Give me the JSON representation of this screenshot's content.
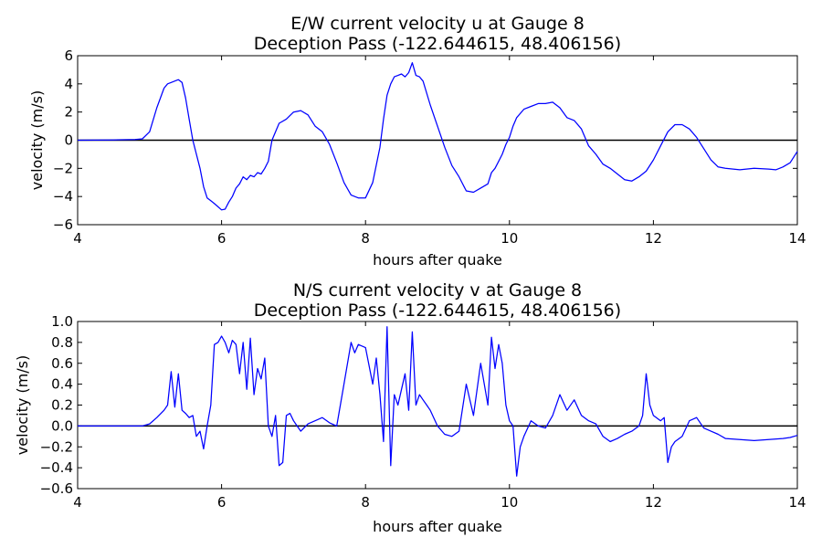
{
  "chart_data": [
    {
      "type": "line",
      "title_line1": "E/W current velocity u at Gauge 8",
      "title_line2": "Deception Pass  (-122.644615, 48.406156)",
      "xlabel": "hours after quake",
      "ylabel": "velocity (m/s)",
      "xlim": [
        4,
        14
      ],
      "ylim": [
        -6,
        6
      ],
      "xticks": [
        4,
        6,
        8,
        10,
        12,
        14
      ],
      "yticks": [
        -6,
        -4,
        -2,
        0,
        2,
        4,
        6
      ],
      "xtick_labels": [
        "4",
        "6",
        "8",
        "10",
        "12",
        "14"
      ],
      "ytick_labels": [
        "−6",
        "−4",
        "−2",
        "0",
        "2",
        "4",
        "6"
      ],
      "zero_line": true,
      "series_color": "#0000ff",
      "x": [
        4.0,
        4.5,
        4.8,
        4.9,
        5.0,
        5.1,
        5.2,
        5.25,
        5.3,
        5.4,
        5.45,
        5.5,
        5.55,
        5.6,
        5.7,
        5.75,
        5.8,
        5.85,
        5.9,
        6.0,
        6.05,
        6.1,
        6.15,
        6.2,
        6.25,
        6.3,
        6.35,
        6.4,
        6.45,
        6.5,
        6.55,
        6.6,
        6.65,
        6.7,
        6.8,
        6.9,
        7.0,
        7.1,
        7.2,
        7.3,
        7.4,
        7.5,
        7.6,
        7.7,
        7.8,
        7.9,
        8.0,
        8.1,
        8.2,
        8.25,
        8.3,
        8.35,
        8.4,
        8.45,
        8.5,
        8.55,
        8.6,
        8.65,
        8.7,
        8.75,
        8.8,
        8.9,
        9.0,
        9.1,
        9.2,
        9.3,
        9.4,
        9.5,
        9.6,
        9.7,
        9.75,
        9.8,
        9.85,
        9.9,
        9.95,
        10.0,
        10.05,
        10.1,
        10.2,
        10.3,
        10.4,
        10.5,
        10.6,
        10.7,
        10.8,
        10.9,
        11.0,
        11.1,
        11.2,
        11.3,
        11.4,
        11.5,
        11.6,
        11.7,
        11.8,
        11.9,
        12.0,
        12.1,
        12.2,
        12.3,
        12.4,
        12.5,
        12.6,
        12.7,
        12.8,
        12.9,
        13.0,
        13.2,
        13.4,
        13.6,
        13.7,
        13.8,
        13.9,
        14.0
      ],
      "y": [
        0.0,
        0.02,
        0.05,
        0.1,
        0.6,
        2.3,
        3.7,
        4.0,
        4.1,
        4.3,
        4.1,
        3.0,
        1.5,
        0.0,
        -2.0,
        -3.3,
        -4.1,
        -4.3,
        -4.5,
        -4.95,
        -4.9,
        -4.4,
        -4.0,
        -3.4,
        -3.1,
        -2.6,
        -2.8,
        -2.5,
        -2.6,
        -2.3,
        -2.4,
        -2.0,
        -1.5,
        0.0,
        1.2,
        1.5,
        2.0,
        2.1,
        1.8,
        1.0,
        0.6,
        -0.3,
        -1.6,
        -3.0,
        -3.9,
        -4.1,
        -4.1,
        -3.0,
        -0.5,
        1.5,
        3.2,
        4.0,
        4.5,
        4.6,
        4.7,
        4.5,
        4.8,
        5.5,
        4.6,
        4.5,
        4.2,
        2.5,
        1.0,
        -0.5,
        -1.8,
        -2.6,
        -3.6,
        -3.7,
        -3.4,
        -3.1,
        -2.3,
        -2.0,
        -1.5,
        -1.0,
        -0.3,
        0.2,
        1.0,
        1.6,
        2.2,
        2.4,
        2.6,
        2.6,
        2.7,
        2.3,
        1.6,
        1.4,
        0.8,
        -0.4,
        -1.0,
        -1.7,
        -2.0,
        -2.4,
        -2.8,
        -2.9,
        -2.6,
        -2.2,
        -1.4,
        -0.4,
        0.6,
        1.1,
        1.1,
        0.8,
        0.2,
        -0.6,
        -1.4,
        -1.9,
        -2.0,
        -2.1,
        -2.0,
        -2.05,
        -2.1,
        -1.9,
        -1.6,
        -0.8
      ]
    },
    {
      "type": "line",
      "title_line1": "N/S current velocity v at Gauge 8",
      "title_line2": "Deception Pass  (-122.644615, 48.406156)",
      "xlabel": "hours after quake",
      "ylabel": "velocity (m/s)",
      "xlim": [
        4,
        14
      ],
      "ylim": [
        -0.6,
        1.0
      ],
      "xticks": [
        4,
        6,
        8,
        10,
        12,
        14
      ],
      "yticks": [
        -0.6,
        -0.4,
        -0.2,
        0.0,
        0.2,
        0.4,
        0.6,
        0.8,
        1.0
      ],
      "xtick_labels": [
        "4",
        "6",
        "8",
        "10",
        "12",
        "14"
      ],
      "ytick_labels": [
        "−0.6",
        "−0.4",
        "−0.2",
        "0.0",
        "0.2",
        "0.4",
        "0.6",
        "0.8",
        "1.0"
      ],
      "zero_line": true,
      "series_color": "#0000ff",
      "x": [
        4.0,
        4.9,
        5.0,
        5.1,
        5.2,
        5.25,
        5.3,
        5.35,
        5.4,
        5.45,
        5.5,
        5.55,
        5.6,
        5.65,
        5.7,
        5.75,
        5.8,
        5.85,
        5.9,
        5.95,
        6.0,
        6.05,
        6.1,
        6.15,
        6.2,
        6.25,
        6.3,
        6.35,
        6.4,
        6.45,
        6.5,
        6.55,
        6.6,
        6.65,
        6.7,
        6.75,
        6.8,
        6.85,
        6.9,
        6.95,
        7.0,
        7.05,
        7.1,
        7.2,
        7.3,
        7.4,
        7.5,
        7.6,
        7.7,
        7.8,
        7.85,
        7.9,
        8.0,
        8.1,
        8.15,
        8.2,
        8.25,
        8.3,
        8.35,
        8.4,
        8.45,
        8.5,
        8.55,
        8.6,
        8.65,
        8.7,
        8.75,
        8.8,
        8.85,
        8.9,
        9.0,
        9.1,
        9.2,
        9.3,
        9.4,
        9.5,
        9.6,
        9.7,
        9.75,
        9.8,
        9.85,
        9.9,
        9.95,
        10.0,
        10.05,
        10.1,
        10.15,
        10.2,
        10.3,
        10.4,
        10.5,
        10.6,
        10.7,
        10.8,
        10.9,
        11.0,
        11.1,
        11.2,
        11.3,
        11.4,
        11.5,
        11.6,
        11.7,
        11.8,
        11.85,
        11.9,
        11.95,
        12.0,
        12.1,
        12.15,
        12.2,
        12.25,
        12.3,
        12.4,
        12.5,
        12.6,
        12.7,
        12.8,
        12.9,
        13.0,
        13.2,
        13.4,
        13.6,
        13.8,
        13.9,
        14.0
      ],
      "y": [
        0.0,
        0.0,
        0.02,
        0.08,
        0.15,
        0.2,
        0.52,
        0.18,
        0.5,
        0.15,
        0.12,
        0.08,
        0.1,
        -0.1,
        -0.05,
        -0.22,
        0.0,
        0.2,
        0.78,
        0.8,
        0.86,
        0.8,
        0.7,
        0.82,
        0.78,
        0.5,
        0.8,
        0.35,
        0.84,
        0.3,
        0.55,
        0.45,
        0.65,
        0.0,
        -0.1,
        0.1,
        -0.38,
        -0.35,
        0.1,
        0.12,
        0.05,
        0.0,
        -0.05,
        0.02,
        0.05,
        0.08,
        0.03,
        0.0,
        0.4,
        0.8,
        0.7,
        0.78,
        0.75,
        0.4,
        0.65,
        0.3,
        -0.15,
        0.95,
        -0.38,
        0.3,
        0.2,
        0.35,
        0.5,
        0.15,
        0.9,
        0.2,
        0.3,
        0.25,
        0.2,
        0.15,
        0.0,
        -0.08,
        -0.1,
        -0.05,
        0.4,
        0.1,
        0.6,
        0.2,
        0.85,
        0.55,
        0.78,
        0.6,
        0.2,
        0.05,
        0.0,
        -0.48,
        -0.2,
        -0.1,
        0.05,
        0.0,
        -0.02,
        0.1,
        0.3,
        0.15,
        0.25,
        0.1,
        0.05,
        0.02,
        -0.1,
        -0.15,
        -0.12,
        -0.08,
        -0.05,
        0.0,
        0.1,
        0.5,
        0.2,
        0.1,
        0.05,
        0.08,
        -0.35,
        -0.2,
        -0.15,
        -0.1,
        0.05,
        0.08,
        -0.02,
        -0.05,
        -0.08,
        -0.12,
        -0.13,
        -0.14,
        -0.13,
        -0.12,
        -0.11,
        -0.09
      ]
    }
  ]
}
